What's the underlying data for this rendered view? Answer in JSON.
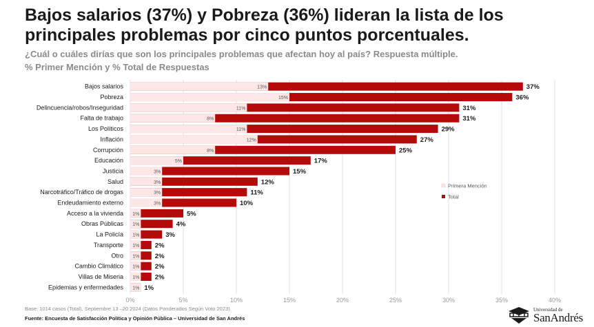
{
  "header": {
    "title": "Bajos salarios (37%) y Pobreza (36%) lideran la lista de los principales problemas por cinco puntos porcentuales.",
    "subtitle1": "¿Cuál o cuáles dirías que son los principales problemas que afectan hoy al país? Respuesta múltiple.",
    "subtitle2": "% Primer Mención y % Total de Respuestas"
  },
  "chart_data": {
    "type": "bar",
    "orientation": "horizontal",
    "categories": [
      "Bajos salarios",
      "Pobreza",
      "Delincuencia/robos/Inseguridad",
      "Falta de trabajo",
      "Los Políticos",
      "Inflación",
      "Corrupción",
      "Educación",
      "Justicia",
      "Salud",
      "Narcotráfico/Tráfico de drogas",
      "Endeudamiento externo",
      "Acceso a la vivienda",
      "Obras Públicas",
      "La Policía",
      "Transporte",
      "Otro",
      "Cambio Climático",
      "Villas de Miseria",
      "Epidemias y enfermedades"
    ],
    "series": [
      {
        "name": "Primera Mención",
        "color": "#fde6e6",
        "values": [
          13,
          15,
          11,
          8,
          11,
          12,
          8,
          5,
          3,
          3,
          3,
          3,
          1,
          1,
          1,
          1,
          1,
          1,
          1,
          1
        ],
        "labels": [
          "13%",
          "15%",
          "11%",
          "8%",
          "11%",
          "12%",
          "8%",
          "5%",
          "3%",
          "3%",
          "3%",
          "3%",
          "1%",
          "1%",
          "1%",
          "1%",
          "1%",
          "1%",
          "1%",
          "1%"
        ]
      },
      {
        "name": "Total",
        "color": "#b40a0a",
        "values": [
          37,
          36,
          31,
          31,
          29,
          27,
          25,
          17,
          15,
          12,
          11,
          10,
          5,
          4,
          3,
          2,
          2,
          2,
          2,
          1
        ],
        "labels": [
          "37%",
          "36%",
          "31%",
          "31%",
          "29%",
          "27%",
          "25%",
          "17%",
          "15%",
          "12%",
          "11%",
          "10%",
          "5%",
          "4%",
          "3%",
          "2%",
          "2%",
          "2%",
          "2%",
          "1%"
        ]
      }
    ],
    "xlim": [
      0,
      40
    ],
    "xticks": [
      0,
      5,
      10,
      15,
      20,
      25,
      30,
      35,
      40
    ],
    "xtick_labels": [
      "0%",
      "5%",
      "10%",
      "15%",
      "20%",
      "25%",
      "30%",
      "35%",
      "40%"
    ],
    "grid": true,
    "legend_position": "right"
  },
  "footer": {
    "base": "Base: 1014 casos (Total), Septiembre 13 –20 2024 (Datos Ponderados Según Voto 2023)",
    "source": "Fuente: Encuesta de Satisfacción Política y Opinión Pública – Universidad de San Andrés",
    "logo_small": "Universidad de",
    "logo_big": "SanAndrés"
  }
}
